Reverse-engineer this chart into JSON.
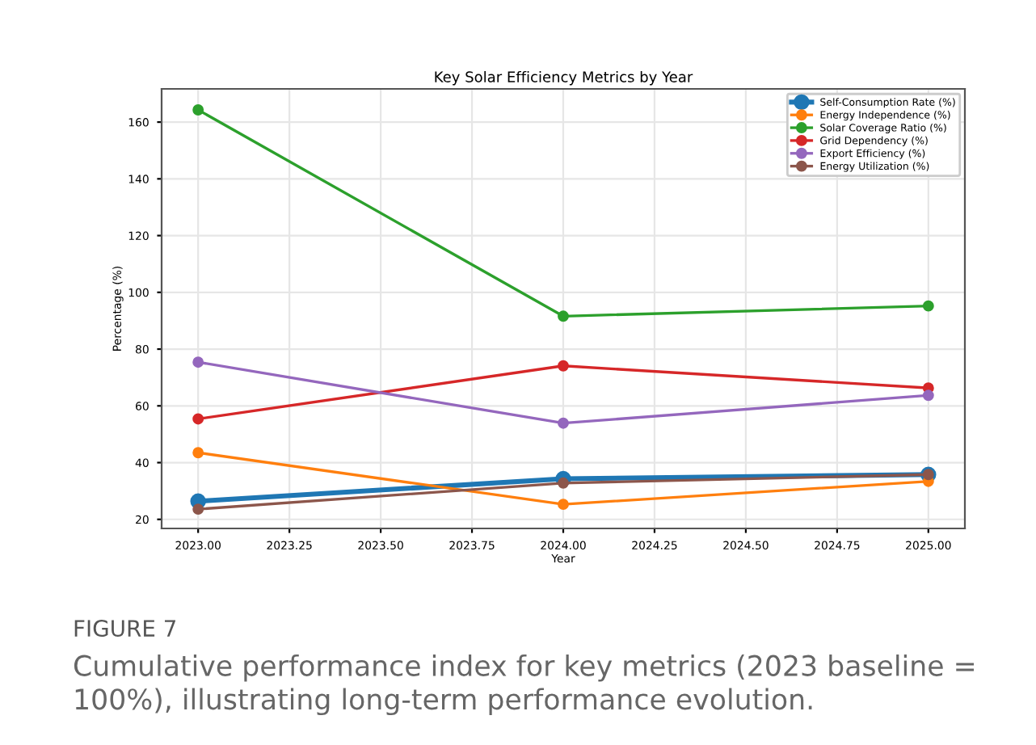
{
  "chart_data": {
    "type": "line",
    "title": "Key Solar Efficiency Metrics by Year",
    "xlabel": "Year",
    "ylabel": "Percentage (%)",
    "x": [
      2023,
      2024,
      2025
    ],
    "series": [
      {
        "name": "Self-Consumption Rate (%)",
        "color": "#1f77b4",
        "values": [
          26.4,
          34.3,
          35.8
        ]
      },
      {
        "name": "Energy Independence (%)",
        "color": "#ff7f0e",
        "values": [
          43.5,
          25.3,
          33.4
        ]
      },
      {
        "name": "Solar Coverage Ratio (%)",
        "color": "#2ca02c",
        "values": [
          164.3,
          91.6,
          95.2
        ]
      },
      {
        "name": "Grid Dependency (%)",
        "color": "#d62728",
        "values": [
          55.4,
          74.1,
          66.3
        ]
      },
      {
        "name": "Export Efficiency (%)",
        "color": "#9467bd",
        "values": [
          75.4,
          53.9,
          63.7
        ]
      },
      {
        "name": "Energy Utilization (%)",
        "color": "#8c564b",
        "values": [
          23.6,
          32.8,
          35.8
        ]
      }
    ],
    "xlim": [
      2022.9,
      2025.1
    ],
    "xticks": [
      {
        "value": 2023,
        "label": "2023.00"
      },
      {
        "value": 2023.25,
        "label": "2023.25"
      },
      {
        "value": 2023.5,
        "label": "2023.50"
      },
      {
        "value": 2023.75,
        "label": "2023.75"
      },
      {
        "value": 2024,
        "label": "2024.00"
      },
      {
        "value": 2024.25,
        "label": "2024.25"
      },
      {
        "value": 2024.5,
        "label": "2024.50"
      },
      {
        "value": 2024.75,
        "label": "2024.75"
      },
      {
        "value": 2025,
        "label": "2025.00"
      }
    ],
    "ylim": [
      16.8,
      171.7
    ],
    "yticks": [
      20,
      40,
      60,
      80,
      100,
      120,
      140,
      160
    ],
    "grid": true,
    "legend": "top right",
    "marker": "circle",
    "line_style": "solid",
    "annotations": [
      "FIGURE 7",
      "Cumulative performance index for key metrics (2023 baseline = 100%), illustrating long-term performance evolution."
    ]
  }
}
